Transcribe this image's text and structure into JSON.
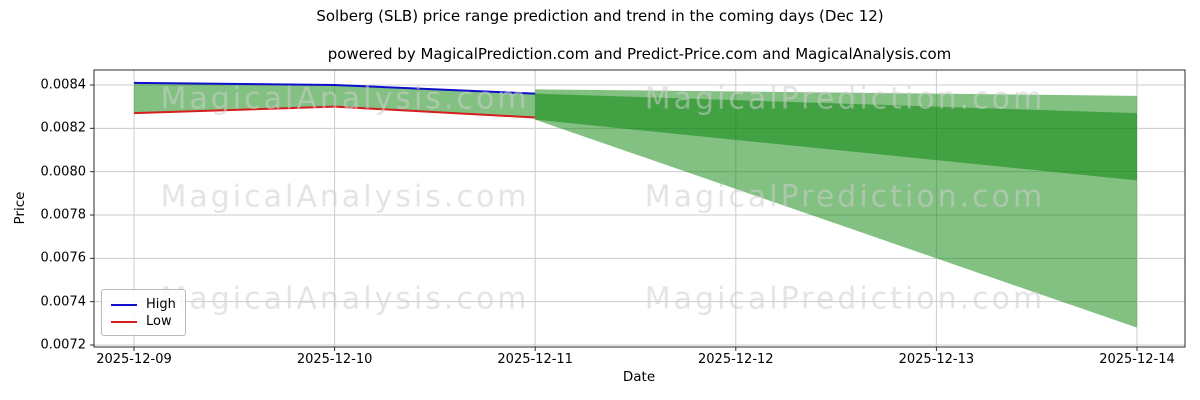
{
  "figure": {
    "title": "Solberg (SLB) price range prediction and trend in the coming days (Dec 12)",
    "axes_title": "powered by MagicalPrediction.com and Predict-Price.com and MagicalAnalysis.com"
  },
  "watermarks": {
    "left_text": "MagicalAnalysis.com",
    "right_text": "MagicalPrediction.com"
  },
  "chart_data": {
    "type": "line",
    "title": "Solberg (SLB) price range prediction and trend in the coming days (Dec 12)",
    "xlabel": "Date",
    "ylabel": "Price",
    "x_categories": [
      "2025-12-09",
      "2025-12-10",
      "2025-12-11",
      "2025-12-12",
      "2025-12-13",
      "2025-12-14"
    ],
    "ytick_labels": [
      "0.0072",
      "0.0074",
      "0.0076",
      "0.0078",
      "0.0080",
      "0.0082",
      "0.0084"
    ],
    "ylim": [
      0.00719,
      0.008469
    ],
    "grid": true,
    "legend_position": "lower left",
    "series": [
      {
        "name": "High",
        "color": "#0f0fcb",
        "x_idx": [
          0,
          1,
          2
        ],
        "values": [
          0.00841,
          0.0084,
          0.00836
        ]
      },
      {
        "name": "Low",
        "color": "#d51e1e",
        "x_idx": [
          0,
          1,
          2
        ],
        "values": [
          0.00827,
          0.0083,
          0.00825
        ]
      }
    ],
    "bands": [
      {
        "name": "history-range",
        "x_idx": [
          0,
          1,
          2
        ],
        "upper": [
          0.00841,
          0.0084,
          0.00836
        ],
        "lower": [
          0.00827,
          0.0083,
          0.00825
        ]
      },
      {
        "name": "forecast-range-outer",
        "x_idx": [
          2,
          5
        ],
        "upper": [
          0.00838,
          0.00835
        ],
        "lower": [
          0.00824,
          0.00728
        ]
      },
      {
        "name": "forecast-range-inner",
        "x_idx": [
          2,
          5
        ],
        "upper": [
          0.00836,
          0.00827
        ],
        "lower": [
          0.00824,
          0.00796
        ]
      }
    ],
    "band_color": "#008000",
    "band_opacity": 0.49
  }
}
